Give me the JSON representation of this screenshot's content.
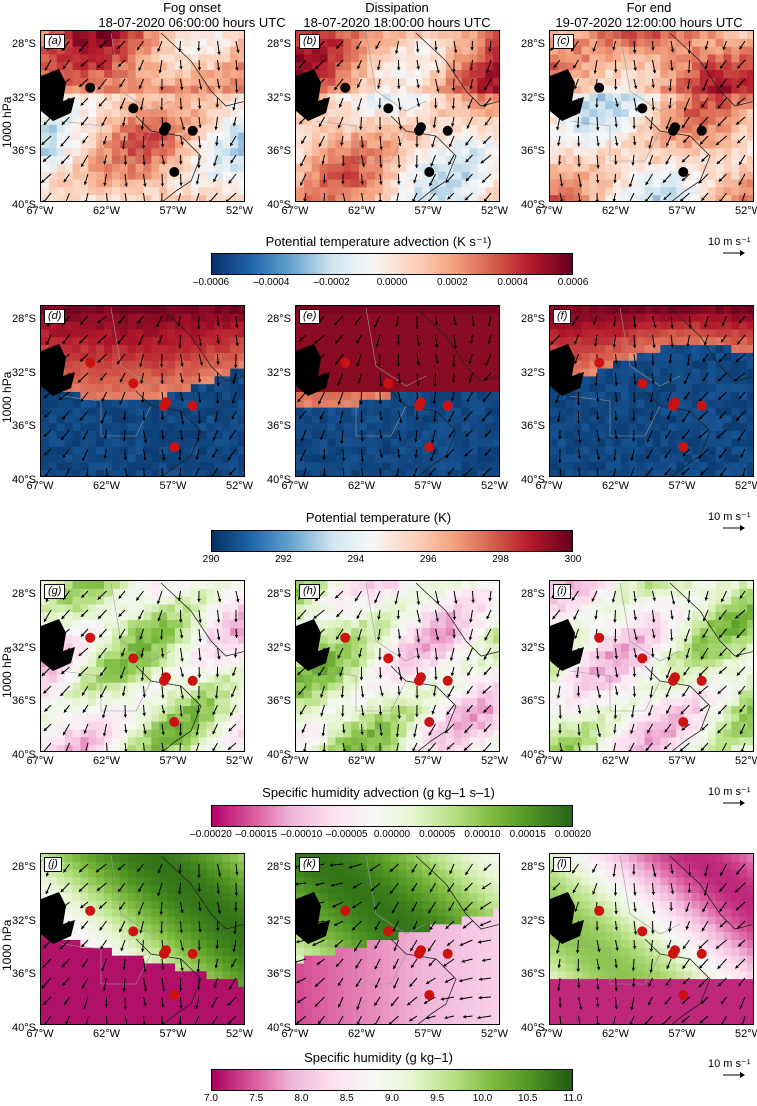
{
  "columns": [
    {
      "title": "Fog onset",
      "subtitle": "18-07-2020 06:00:00 hours UTC"
    },
    {
      "title": "Dissipation",
      "subtitle": "18-07-2020 18:00:00 hours UTC"
    },
    {
      "title": "For end",
      "subtitle": "19-07-2020 12:00:00 hours UTC"
    }
  ],
  "row_label": "1000 hPa",
  "y_ticks": [
    "28°S",
    "32°S",
    "36°S",
    "40°S"
  ],
  "x_ticks": [
    "67°W",
    "62°W",
    "57°W",
    "52°W"
  ],
  "vector_reference": "10 m s⁻¹",
  "rows": [
    {
      "panels": [
        "(a)",
        "(b)",
        "(c)"
      ],
      "colorbar": {
        "title": "Potential temperature advection (K s⁻¹)",
        "ticks": [
          "–0.0006",
          "–0.0004",
          "–0.0002",
          "0.0000",
          "0.0002",
          "0.0004",
          "0.0006"
        ],
        "colors": [
          "#08306b",
          "#2166ac",
          "#6aa5d0",
          "#d1e5f0",
          "#f7f7f7",
          "#fcd4bf",
          "#f4a582",
          "#d6604d",
          "#b2182b",
          "#67001f"
        ]
      },
      "marker_color": "#000000"
    },
    {
      "panels": [
        "(d)",
        "(e)",
        "(f)"
      ],
      "colorbar": {
        "title": "Potential temperature (K)",
        "ticks": [
          "290",
          "292",
          "294",
          "296",
          "298",
          "300"
        ],
        "colors": [
          "#053061",
          "#2166ac",
          "#6aa5d0",
          "#d1e5f0",
          "#f7f7f7",
          "#fcd4bf",
          "#f4a582",
          "#d6604d",
          "#b2182b",
          "#67001f"
        ]
      },
      "marker_color": "#cc1111"
    },
    {
      "panels": [
        "(g)",
        "(h)",
        "(i)"
      ],
      "colorbar": {
        "title": "Specific humidity advection (g kg–1 s–1)",
        "ticks": [
          "–0.00020",
          "–0.00015",
          "–0.00010",
          "–0.00005",
          "0.00000",
          "0.00005",
          "0.00010",
          "0.00015",
          "0.00020"
        ],
        "colors": [
          "#b5006b",
          "#d9579c",
          "#f1b6da",
          "#fde0ef",
          "#f7f7f7",
          "#e6f5d0",
          "#b8e186",
          "#7fbc41",
          "#4d9221",
          "#276419"
        ]
      },
      "marker_color": "#cc1111"
    },
    {
      "panels": [
        "(j)",
        "(k)",
        "(l)"
      ],
      "colorbar": {
        "title": "Specific humidity (g kg–1)",
        "ticks": [
          "7.0",
          "7.5",
          "8.0",
          "8.5",
          "9.0",
          "9.5",
          "10.0",
          "10.5",
          "11.0"
        ],
        "colors": [
          "#a8005e",
          "#d9579c",
          "#f1b6da",
          "#fde0ef",
          "#f7f7f7",
          "#e6f5d0",
          "#b8e186",
          "#7fbc41",
          "#4d9221",
          "#1f5c12"
        ]
      },
      "marker_color": "#cc1111"
    }
  ]
}
